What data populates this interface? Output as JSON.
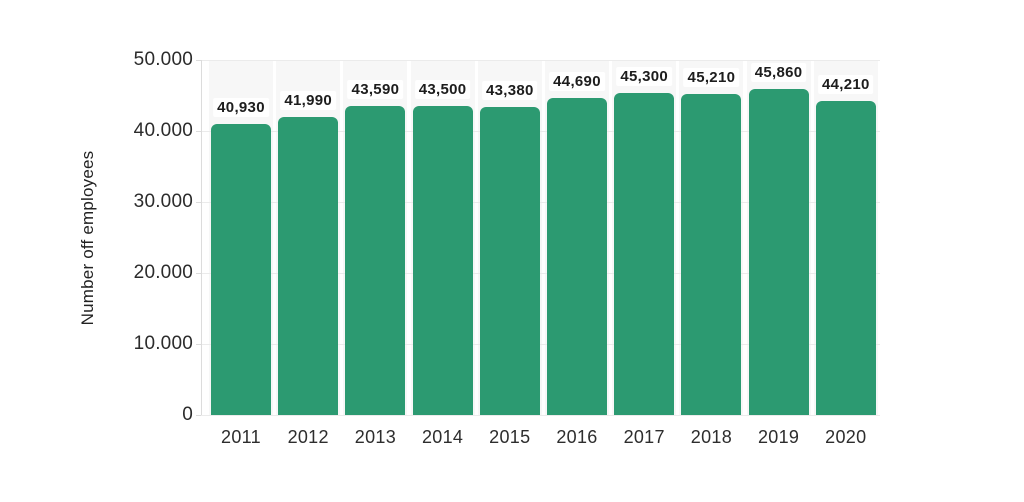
{
  "chart": {
    "y_axis_title": "Number off employees",
    "colors": {
      "bar": "#2c9a71",
      "column_band": "#f7f7f7",
      "gridline": "#ebebeb",
      "axis": "#dcdcdc",
      "tick_text": "#2b2b2b",
      "value_text": "#1d1d1d",
      "background": "#ffffff"
    }
  },
  "chart_data": {
    "type": "bar",
    "title": "",
    "xlabel": "",
    "ylabel": "Number off employees",
    "categories": [
      "2011",
      "2012",
      "2013",
      "2014",
      "2015",
      "2016",
      "2017",
      "2018",
      "2019",
      "2020"
    ],
    "values": [
      40930,
      41990,
      43590,
      43500,
      43380,
      44690,
      45300,
      45210,
      45860,
      44210
    ],
    "value_labels": [
      "40,930",
      "41,990",
      "43,590",
      "43,500",
      "43,380",
      "44,690",
      "45,300",
      "45,210",
      "45,860",
      "44,210"
    ],
    "ylim": [
      0,
      50000
    ],
    "ytick_values": [
      0,
      10000,
      20000,
      30000,
      40000,
      50000
    ],
    "ytick_labels": [
      "0",
      "10.000",
      "20.000",
      "30.000",
      "40.000",
      "50.000"
    ],
    "grid": true,
    "legend": false,
    "bar_color": "#2c9a71"
  }
}
